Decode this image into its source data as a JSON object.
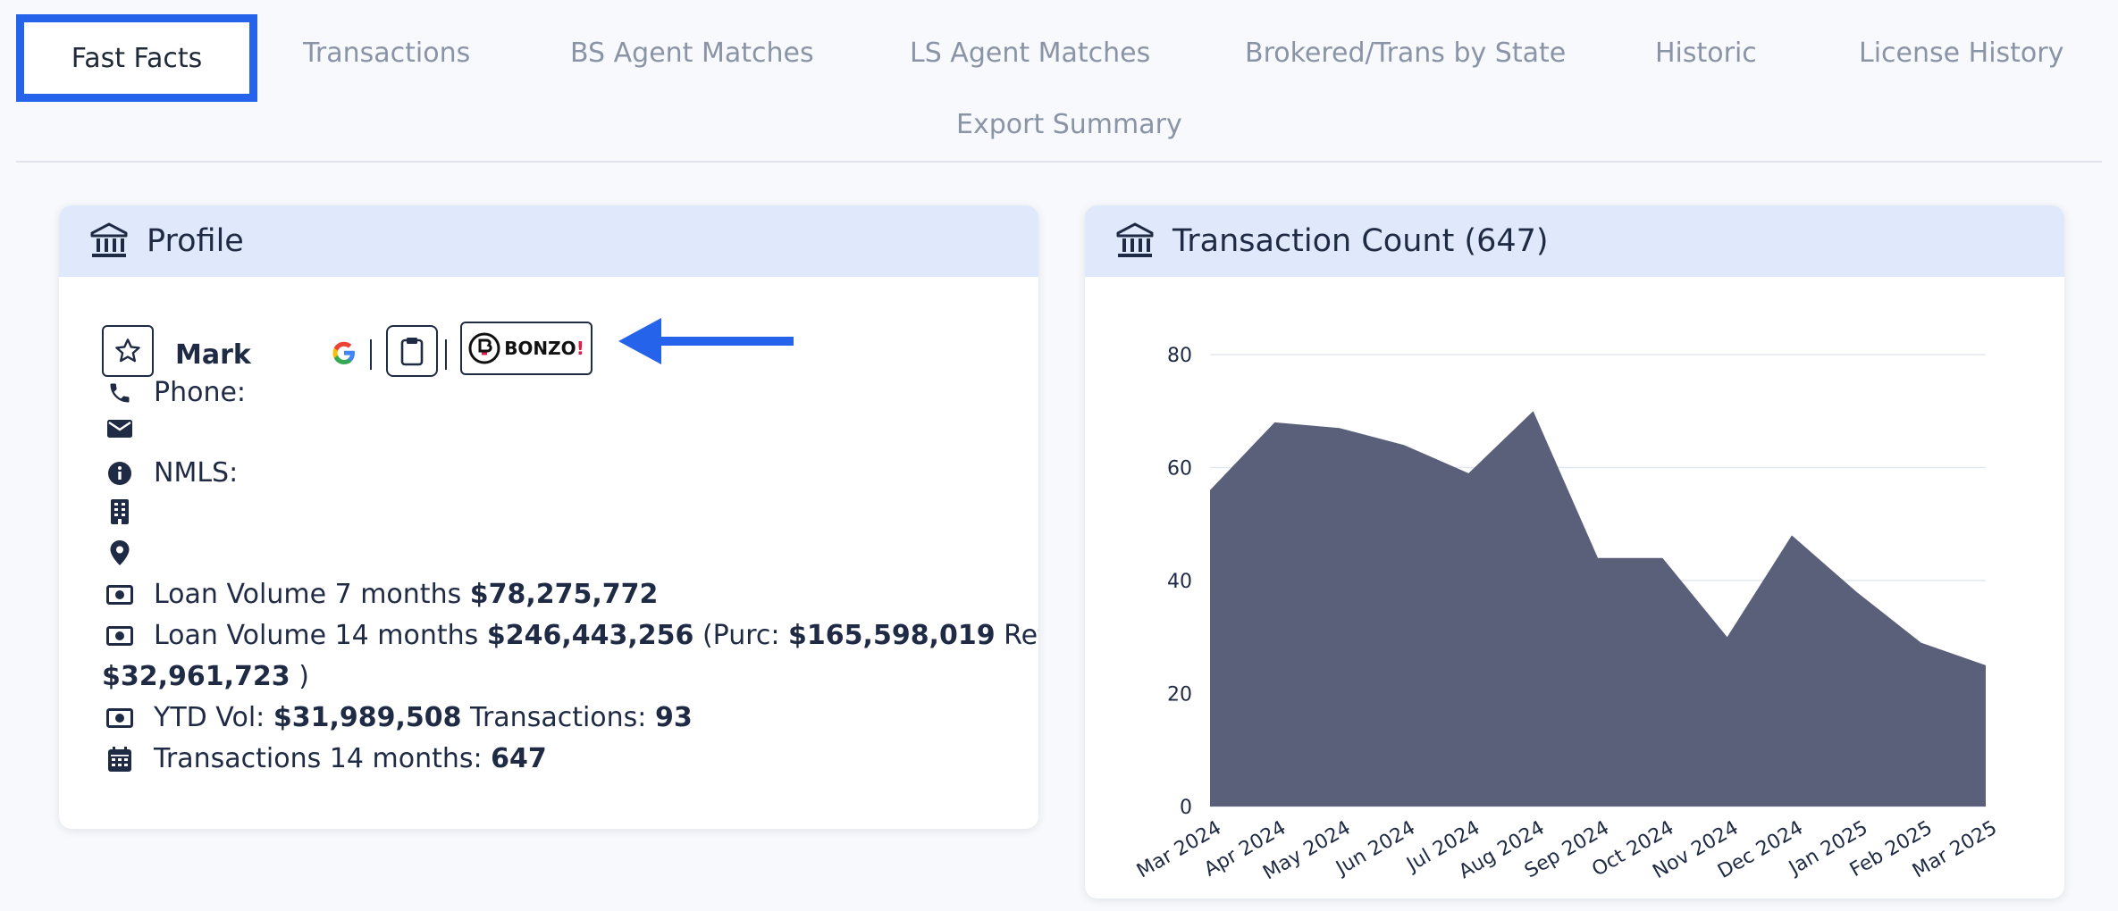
{
  "tabs": [
    {
      "label": "Fast Facts",
      "active": true
    },
    {
      "label": "Transactions"
    },
    {
      "label": "BS Agent Matches"
    },
    {
      "label": "LS Agent Matches"
    },
    {
      "label": "Brokered/Trans by State"
    },
    {
      "label": "Historic"
    },
    {
      "label": "License History"
    },
    {
      "label": "Export Summary"
    }
  ],
  "profile": {
    "title": "Profile",
    "name": "Mark",
    "google_icon_letter": "G",
    "bonzo_label": "BONZO",
    "bonzo_excl": "!",
    "phone_label": "Phone:",
    "nmls_label": "NMLS:",
    "loan7_label": "Loan Volume 7 months",
    "loan7_value": "$78,275,772",
    "loan14_label": "Loan Volume 14 months",
    "loan14_value": "$246,443,256",
    "purc_open": "(Purc:",
    "purc_value": "$165,598,019",
    "refi_label": "Refi:",
    "refi_value": "$32,961,723",
    "refi_close": ")",
    "ytd_label": "YTD Vol:",
    "ytd_value": "$31,989,508",
    "ytd_tx_label": "Transactions:",
    "ytd_tx_value": "93",
    "tx14_label": "Transactions 14 months:",
    "tx14_value": "647"
  },
  "transaction_card": {
    "title": "Transaction Count (647)"
  },
  "colors": {
    "accent": "#2563eb",
    "area_fill": "#5a5f7a",
    "header_bg": "#dfe9fb",
    "text_dark": "#1f2a44",
    "tab_inactive": "#8a94a6"
  },
  "icons": [
    "bank-icon",
    "star-icon",
    "google-icon",
    "clipboard-icon",
    "bonzo-logo",
    "phone-icon",
    "envelope-icon",
    "info-icon",
    "building-icon",
    "location-pin-icon",
    "money-icon",
    "calendar-icon",
    "arrow-left-icon"
  ],
  "chart_data": {
    "type": "area",
    "title": "Transaction Count (647)",
    "categories": [
      "Mar 2024",
      "Apr 2024",
      "May 2024",
      "Jun 2024",
      "Jul 2024",
      "Aug 2024",
      "Sep 2024",
      "Oct 2024",
      "Nov 2024",
      "Dec 2024",
      "Jan 2025",
      "Feb 2025",
      "Mar 2025"
    ],
    "values": [
      56,
      68,
      67,
      64,
      59,
      70,
      44,
      44,
      30,
      48,
      38,
      29,
      25
    ],
    "ylim": [
      0,
      80
    ],
    "yticks": [
      0,
      20,
      40,
      60,
      80
    ],
    "grid": true,
    "legend": "none"
  }
}
